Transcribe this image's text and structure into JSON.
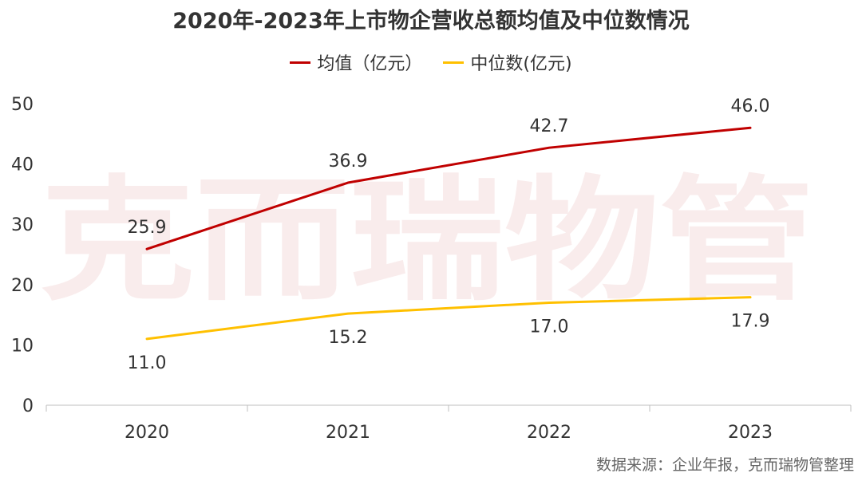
{
  "watermark": "克而瑞物管",
  "source_text": "数据来源：企业年报，克而瑞物管整理",
  "chart_data": {
    "type": "line",
    "title": "2020年-2023年上市物企营收总额均值及中位数情况",
    "categories": [
      "2020",
      "2021",
      "2022",
      "2023"
    ],
    "ylim": [
      0,
      50
    ],
    "yticks": [
      0,
      10,
      20,
      30,
      40,
      50
    ],
    "grid": false,
    "legend_position": "top-center",
    "series": [
      {
        "name": "均值（亿元）",
        "color": "#c00000",
        "values": [
          25.9,
          36.9,
          42.7,
          46.0
        ],
        "labels": [
          "25.9",
          "36.9",
          "42.7",
          "46.0"
        ],
        "label_position": "above"
      },
      {
        "name": "中位数(亿元)",
        "color": "#ffc000",
        "values": [
          11.0,
          15.2,
          17.0,
          17.9
        ],
        "labels": [
          "11.0",
          "15.2",
          "17.0",
          "17.9"
        ],
        "label_position": "below"
      }
    ]
  }
}
